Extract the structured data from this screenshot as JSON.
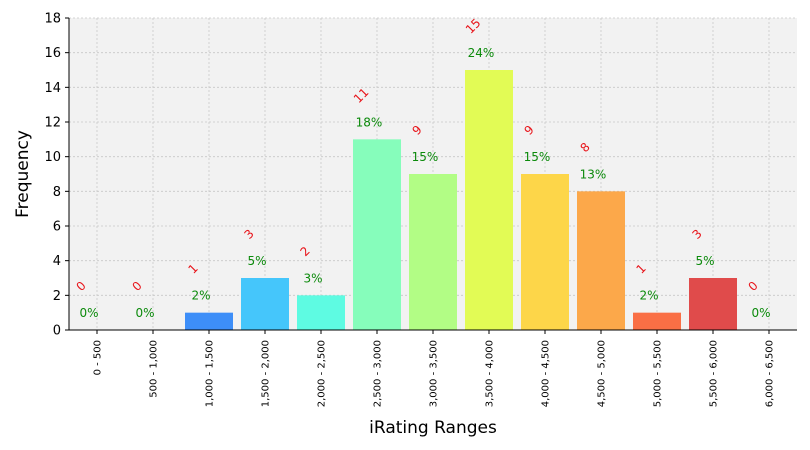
{
  "chart_data": {
    "type": "bar",
    "title": "",
    "xlabel": "iRating Ranges",
    "ylabel": "Frequency",
    "ylim": [
      0,
      18
    ],
    "yticks": [
      0,
      2,
      4,
      6,
      8,
      10,
      12,
      14,
      16,
      18
    ],
    "grid": true,
    "categories": [
      "0 - 500",
      "500 - 1,000",
      "1,000 - 1,500",
      "1,500 - 2,000",
      "2,000 - 2,500",
      "2,500 - 3,000",
      "3,000 - 3,500",
      "3,500 - 4,000",
      "4,000 - 4,500",
      "4,500 - 5,000",
      "5,000 - 5,500",
      "5,500 - 6,000",
      "6,000 - 6,500"
    ],
    "values": [
      0,
      0,
      1,
      3,
      2,
      11,
      9,
      15,
      9,
      8,
      1,
      3,
      0
    ],
    "count_labels": [
      "0",
      "0",
      "1",
      "3",
      "2",
      "11",
      "9",
      "15",
      "9",
      "8",
      "1",
      "3",
      "0"
    ],
    "percent_labels": [
      "0%",
      "0%",
      "2%",
      "5%",
      "3%",
      "18%",
      "15%",
      "24%",
      "15%",
      "13%",
      "2%",
      "5%",
      "0%"
    ],
    "colors": [
      "#3b3bd6",
      "#2f5ef5",
      "#3d8ef8",
      "#45c6fb",
      "#5efbe2",
      "#86fdbb",
      "#b2fd85",
      "#e2fb55",
      "#fdd649",
      "#fca84a",
      "#fa6f45",
      "#e04b4b",
      "#b02020"
    ]
  }
}
